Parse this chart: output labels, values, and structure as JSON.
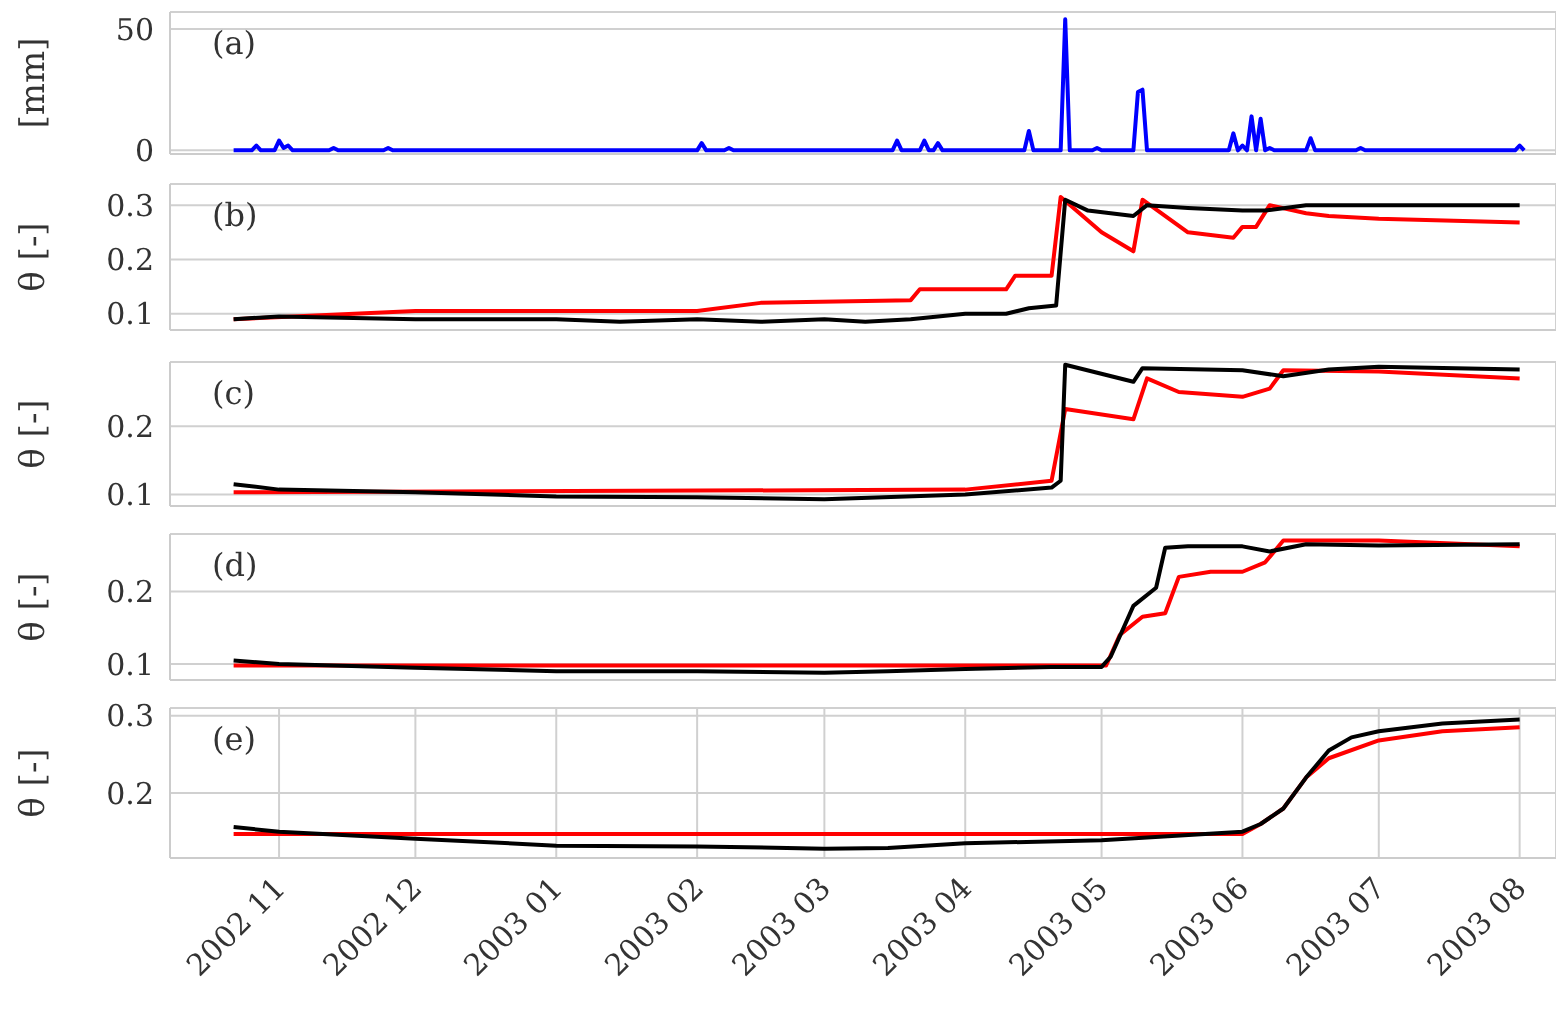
{
  "chart_data": [
    {
      "type": "line",
      "ylabel": "[mm]",
      "annotations": [
        "(a)"
      ],
      "xlim": [
        "2002-10-08",
        "2003-08-09"
      ],
      "xticks": [
        "2002-11-01",
        "2002-12-01",
        "2003-01-01",
        "2003-02-01",
        "2003-03-01",
        "2003-04-01",
        "2003-05-01",
        "2003-06-01",
        "2003-07-01",
        "2003-08-01"
      ],
      "ylim": [
        -1.5,
        57
      ],
      "yticks": [
        0,
        50
      ],
      "grid": true,
      "tick_labels": "y",
      "series": [
        {
          "color": "#0000ff",
          "x": [
            "2002-10-22",
            "2002-10-26",
            "2002-10-27",
            "2002-10-28",
            "2002-10-31",
            "2002-11-01",
            "2002-11-02",
            "2002-11-03",
            "2002-11-04",
            "2002-11-12",
            "2002-11-13",
            "2002-11-14",
            "2002-11-24",
            "2002-11-25",
            "2002-11-26",
            "2003-02-01",
            "2003-02-02",
            "2003-02-03",
            "2003-02-07",
            "2003-02-08",
            "2003-02-09",
            "2003-03-16",
            "2003-03-17",
            "2003-03-18",
            "2003-03-22",
            "2003-03-23",
            "2003-03-24",
            "2003-03-25",
            "2003-03-26",
            "2003-03-27",
            "2003-04-14",
            "2003-04-15",
            "2003-04-16",
            "2003-04-22",
            "2003-04-23",
            "2003-04-24",
            "2003-04-29",
            "2003-04-30",
            "2003-05-01",
            "2003-05-08",
            "2003-05-09",
            "2003-05-10",
            "2003-05-11",
            "2003-05-29",
            "2003-05-30",
            "2003-05-31",
            "2003-06-01",
            "2003-06-02",
            "2003-06-03",
            "2003-06-04",
            "2003-06-05",
            "2003-06-06",
            "2003-06-07",
            "2003-06-08",
            "2003-06-15",
            "2003-06-16",
            "2003-06-17",
            "2003-06-26",
            "2003-06-27",
            "2003-06-28",
            "2003-07-31",
            "2003-08-01",
            "2003-08-02"
          ],
          "values": [
            0,
            0,
            2,
            0,
            0,
            4,
            1,
            2,
            0,
            0,
            1,
            0,
            0,
            1,
            0,
            0,
            3,
            0,
            0,
            1,
            0,
            0,
            4,
            0,
            0,
            4,
            0,
            0,
            3,
            0,
            0,
            8,
            0,
            0,
            54,
            0,
            0,
            1,
            0,
            0,
            24,
            25,
            0,
            0,
            7,
            0,
            2,
            0,
            14,
            0,
            13,
            0,
            1,
            0,
            0,
            5,
            0,
            0,
            1,
            0,
            0,
            2,
            0
          ]
        }
      ]
    },
    {
      "type": "line",
      "ylabel": "θ [-]",
      "annotations": [
        "(b)"
      ],
      "xlim": [
        "2002-10-08",
        "2003-08-09"
      ],
      "xticks": [
        "2002-11-01",
        "2002-12-01",
        "2003-01-01",
        "2003-02-01",
        "2003-03-01",
        "2003-04-01",
        "2003-05-01",
        "2003-06-01",
        "2003-07-01",
        "2003-08-01"
      ],
      "ylim": [
        0.07,
        0.339
      ],
      "yticks": [
        0.1,
        0.2,
        0.3
      ],
      "grid": true,
      "tick_labels": "y",
      "series": [
        {
          "color": "#ff0000",
          "x": [
            "2002-10-22",
            "2002-12-01",
            "2003-02-01",
            "2003-02-15",
            "2003-03-20",
            "2003-03-22",
            "2003-04-10",
            "2003-04-12",
            "2003-04-20",
            "2003-04-22",
            "2003-05-01",
            "2003-05-08",
            "2003-05-10",
            "2003-05-20",
            "2003-05-30",
            "2003-06-01",
            "2003-06-04",
            "2003-06-07",
            "2003-06-15",
            "2003-06-20",
            "2003-07-01",
            "2003-08-01"
          ],
          "values": [
            0.09,
            0.105,
            0.105,
            0.12,
            0.125,
            0.145,
            0.145,
            0.17,
            0.17,
            0.315,
            0.25,
            0.215,
            0.31,
            0.25,
            0.24,
            0.26,
            0.26,
            0.3,
            0.285,
            0.28,
            0.275,
            0.268
          ]
        },
        {
          "color": "#000000",
          "x": [
            "2002-10-22",
            "2002-11-01",
            "2002-12-01",
            "2003-01-01",
            "2003-01-15",
            "2003-02-01",
            "2003-02-15",
            "2003-03-01",
            "2003-03-10",
            "2003-03-20",
            "2003-04-01",
            "2003-04-10",
            "2003-04-15",
            "2003-04-21",
            "2003-04-23",
            "2003-04-28",
            "2003-05-08",
            "2003-05-11",
            "2003-05-20",
            "2003-06-01",
            "2003-06-06",
            "2003-06-15",
            "2003-07-01",
            "2003-08-01"
          ],
          "values": [
            0.09,
            0.095,
            0.09,
            0.09,
            0.085,
            0.09,
            0.085,
            0.09,
            0.085,
            0.09,
            0.1,
            0.1,
            0.11,
            0.115,
            0.31,
            0.29,
            0.28,
            0.3,
            0.295,
            0.29,
            0.29,
            0.3,
            0.3,
            0.3
          ]
        }
      ]
    },
    {
      "type": "line",
      "ylabel": "θ [-]",
      "annotations": [
        "(c)"
      ],
      "xlim": [
        "2002-10-08",
        "2003-08-09"
      ],
      "xticks": [
        "2002-11-01",
        "2002-12-01",
        "2003-01-01",
        "2003-02-01",
        "2003-03-01",
        "2003-04-01",
        "2003-05-01",
        "2003-06-01",
        "2003-07-01",
        "2003-08-01"
      ],
      "ylim": [
        0.083,
        0.294
      ],
      "yticks": [
        0.1,
        0.2
      ],
      "grid": true,
      "tick_labels": "y",
      "series": [
        {
          "color": "#ff0000",
          "x": [
            "2002-10-22",
            "2003-04-01",
            "2003-04-20",
            "2003-04-23",
            "2003-05-08",
            "2003-05-11",
            "2003-05-18",
            "2003-06-01",
            "2003-06-07",
            "2003-06-10",
            "2003-07-01",
            "2003-08-01"
          ],
          "values": [
            0.103,
            0.107,
            0.12,
            0.225,
            0.21,
            0.27,
            0.25,
            0.243,
            0.255,
            0.282,
            0.28,
            0.27
          ]
        },
        {
          "color": "#000000",
          "x": [
            "2002-10-22",
            "2002-11-01",
            "2002-12-01",
            "2003-01-01",
            "2003-02-01",
            "2003-03-01",
            "2003-04-01",
            "2003-04-20",
            "2003-04-22",
            "2003-04-23",
            "2003-05-08",
            "2003-05-10",
            "2003-06-01",
            "2003-06-10",
            "2003-06-20",
            "2003-07-01",
            "2003-08-01"
          ],
          "values": [
            0.115,
            0.107,
            0.103,
            0.097,
            0.096,
            0.093,
            0.1,
            0.11,
            0.12,
            0.29,
            0.265,
            0.285,
            0.282,
            0.273,
            0.283,
            0.287,
            0.283
          ]
        }
      ]
    },
    {
      "type": "line",
      "ylabel": "θ [-]",
      "annotations": [
        "(d)"
      ],
      "xlim": [
        "2002-10-08",
        "2003-08-09"
      ],
      "xticks": [
        "2002-11-01",
        "2002-12-01",
        "2003-01-01",
        "2003-02-01",
        "2003-03-01",
        "2003-04-01",
        "2003-05-01",
        "2003-06-01",
        "2003-07-01",
        "2003-08-01"
      ],
      "ylim": [
        0.078,
        0.279
      ],
      "yticks": [
        0.1,
        0.2
      ],
      "grid": true,
      "tick_labels": "y",
      "series": [
        {
          "color": "#ff0000",
          "x": [
            "2002-10-22",
            "2003-05-02",
            "2003-05-05",
            "2003-05-10",
            "2003-05-15",
            "2003-05-18",
            "2003-05-25",
            "2003-06-01",
            "2003-06-06",
            "2003-06-10",
            "2003-07-01",
            "2003-08-01"
          ],
          "values": [
            0.098,
            0.098,
            0.14,
            0.165,
            0.17,
            0.22,
            0.227,
            0.227,
            0.24,
            0.27,
            0.27,
            0.262
          ]
        },
        {
          "color": "#000000",
          "x": [
            "2002-10-22",
            "2002-11-01",
            "2002-12-01",
            "2003-01-01",
            "2003-02-01",
            "2003-03-01",
            "2003-03-15",
            "2003-04-01",
            "2003-04-20",
            "2003-05-01",
            "2003-05-03",
            "2003-05-08",
            "2003-05-13",
            "2003-05-15",
            "2003-05-20",
            "2003-06-01",
            "2003-06-07",
            "2003-06-15",
            "2003-07-01",
            "2003-08-01"
          ],
          "values": [
            0.105,
            0.1,
            0.095,
            0.09,
            0.09,
            0.088,
            0.09,
            0.093,
            0.096,
            0.096,
            0.11,
            0.18,
            0.205,
            0.26,
            0.262,
            0.262,
            0.255,
            0.265,
            0.263,
            0.265
          ]
        }
      ]
    },
    {
      "type": "line",
      "ylabel": "θ [-]",
      "annotations": [
        "(e)"
      ],
      "xlim": [
        "2002-10-08",
        "2003-08-09"
      ],
      "xticks": [
        {
          "value": "2002-11-01",
          "label": "2002 11"
        },
        {
          "value": "2002-12-01",
          "label": "2002 12"
        },
        {
          "value": "2003-01-01",
          "label": "2003 01"
        },
        {
          "value": "2003-02-01",
          "label": "2003 02"
        },
        {
          "value": "2003-03-01",
          "label": "2003 03"
        },
        {
          "value": "2003-04-01",
          "label": "2003 04"
        },
        {
          "value": "2003-05-01",
          "label": "2003 05"
        },
        {
          "value": "2003-06-01",
          "label": "2003 06"
        },
        {
          "value": "2003-07-01",
          "label": "2003 07"
        },
        {
          "value": "2003-08-01",
          "label": "2003 08"
        }
      ],
      "ylim": [
        0.116,
        0.31
      ],
      "yticks": [
        0.2,
        0.3
      ],
      "grid": true,
      "series": [
        {
          "color": "#ff0000",
          "x": [
            "2002-10-22",
            "2003-06-01",
            "2003-06-05",
            "2003-06-10",
            "2003-06-15",
            "2003-06-20",
            "2003-07-01",
            "2003-07-15",
            "2003-08-01"
          ],
          "values": [
            0.147,
            0.147,
            0.16,
            0.18,
            0.22,
            0.245,
            0.268,
            0.28,
            0.285
          ]
        },
        {
          "color": "#000000",
          "x": [
            "2002-10-22",
            "2002-11-01",
            "2002-12-01",
            "2003-01-01",
            "2003-02-01",
            "2003-03-01",
            "2003-03-15",
            "2003-04-01",
            "2003-05-01",
            "2003-06-01",
            "2003-06-05",
            "2003-06-10",
            "2003-06-15",
            "2003-06-20",
            "2003-06-25",
            "2003-07-01",
            "2003-07-15",
            "2003-08-01"
          ],
          "values": [
            0.156,
            0.15,
            0.141,
            0.132,
            0.131,
            0.128,
            0.129,
            0.135,
            0.139,
            0.15,
            0.16,
            0.18,
            0.22,
            0.255,
            0.272,
            0.28,
            0.29,
            0.295
          ]
        }
      ]
    }
  ]
}
